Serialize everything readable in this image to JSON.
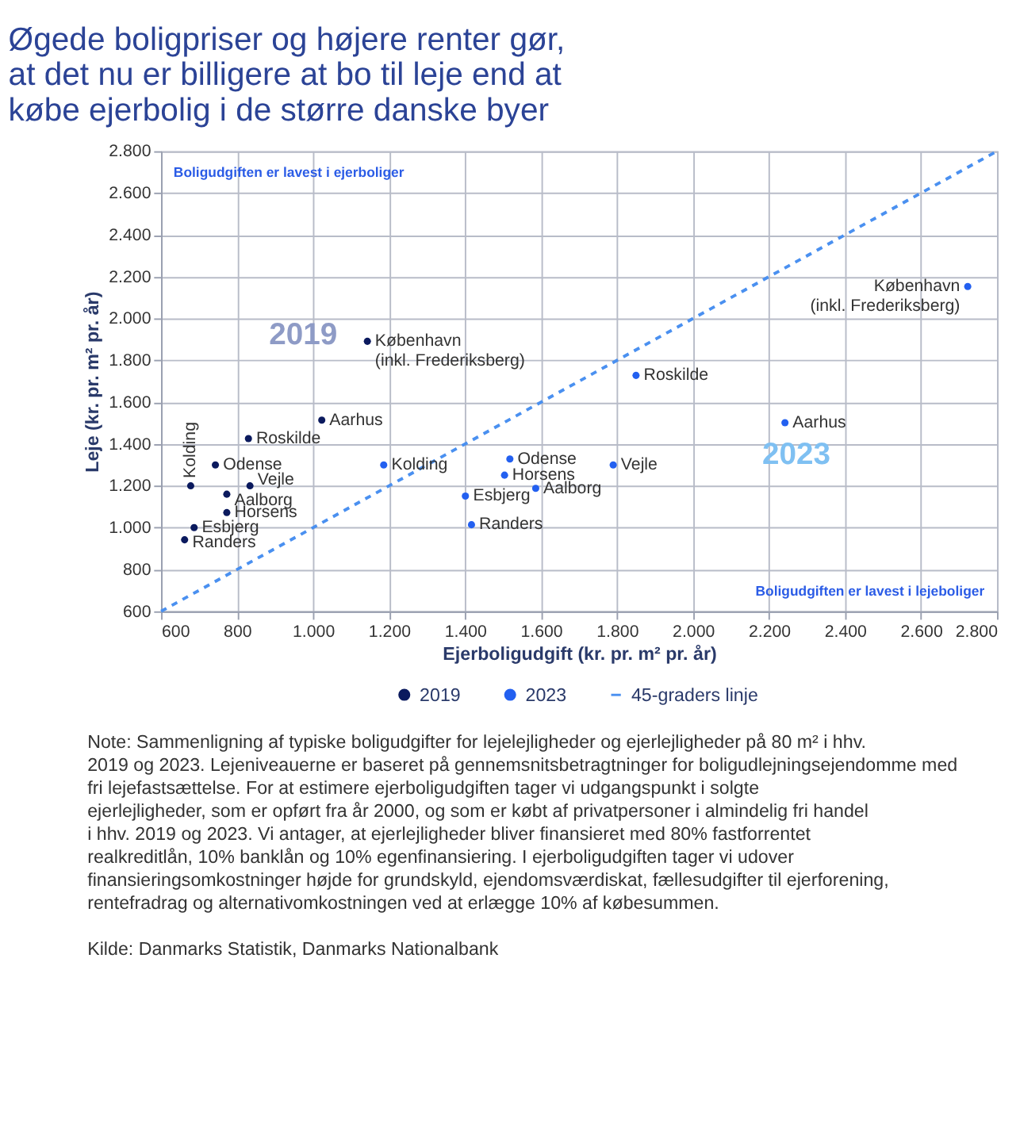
{
  "chart_data": {
    "type": "scatter",
    "title": [
      "Øgede boligpriser og højere renter gør,",
      "at det nu er billigere at bo til leje end at",
      "købe ejerbolig i de større danske byer"
    ],
    "xlabel": "Ejerboligudgift (kr. pr. m² pr. år)",
    "ylabel": "Leje (kr. pr. m² pr. år)",
    "xlim": [
      600,
      2800
    ],
    "ylim": [
      600,
      2800
    ],
    "xticks": [
      600,
      800,
      {
        "value": 1000,
        "label": "1.000"
      },
      {
        "value": 1200,
        "label": "1.200"
      },
      {
        "value": 1400,
        "label": "1.400"
      },
      {
        "value": 1600,
        "label": "1.600"
      },
      {
        "value": 1800,
        "label": "1.800"
      },
      {
        "value": 2000,
        "label": "2.000"
      },
      {
        "value": 2200,
        "label": "2.200"
      },
      {
        "value": 2400,
        "label": "2.400"
      },
      {
        "value": 2600,
        "label": "2.600"
      },
      {
        "value": 2800,
        "label": "2.800"
      }
    ],
    "yticks": [
      600,
      800,
      {
        "value": 1000,
        "label": "1.000"
      },
      {
        "value": 1200,
        "label": "1.200"
      },
      {
        "value": 1400,
        "label": "1.400"
      },
      {
        "value": 1600,
        "label": "1.600"
      },
      {
        "value": 1800,
        "label": "1.800"
      },
      {
        "value": 2000,
        "label": "2.000"
      },
      {
        "value": 2200,
        "label": "2.200"
      },
      {
        "value": 2400,
        "label": "2.400"
      },
      {
        "value": 2600,
        "label": "2.600"
      },
      {
        "value": 2800,
        "label": "2.800"
      }
    ],
    "grid": true,
    "legend": "bottom",
    "marker": "circle",
    "series": [
      {
        "name": "2019",
        "color": "#0b1a5e",
        "x": [
          678,
          743,
          830,
          1023,
          1143,
          834,
          773,
          773,
          687,
          662
        ],
        "values": [
          1200,
          1300,
          1426,
          1514,
          1891,
          1200,
          1160,
          1072,
          1000,
          942
        ]
      },
      {
        "name": "2023",
        "color": "#2360f0",
        "x": [
          1186,
          1518,
          1850,
          2242,
          2723,
          1790,
          1586,
          1504,
          1401,
          1417
        ],
        "values": [
          1300,
          1328,
          1728,
          1502,
          2153,
          1300,
          1188,
          1251,
          1151,
          1014
        ]
      },
      {
        "name": "45-graders linje",
        "color": "#4a90f0",
        "type": "line",
        "marker": "none",
        "line_style": "dashed",
        "x": [
          600,
          2800
        ],
        "values": [
          600,
          2800
        ]
      }
    ],
    "annotations": [
      {
        "text": "Kolding",
        "x": 678,
        "y": 1200
      },
      {
        "text": "Odense",
        "x": 743,
        "y": 1300
      },
      {
        "text": "Roskilde",
        "x": 830,
        "y": 1426
      },
      {
        "text": "Aarhus",
        "x": 1023,
        "y": 1514
      },
      {
        "text": "København\n(inkl. Frederiksberg)",
        "x": 1143,
        "y": 1891
      },
      {
        "text": "Vejle",
        "x": 834,
        "y": 1200
      },
      {
        "text": "Aalborg",
        "x": 773,
        "y": 1160
      },
      {
        "text": "Horsens",
        "x": 773,
        "y": 1072
      },
      {
        "text": "Esbjerg",
        "x": 687,
        "y": 1000
      },
      {
        "text": "Randers",
        "x": 662,
        "y": 942
      },
      {
        "text": "Kolding",
        "x": 1186,
        "y": 1300
      },
      {
        "text": "Odense",
        "x": 1518,
        "y": 1328
      },
      {
        "text": "Roskilde",
        "x": 1850,
        "y": 1728
      },
      {
        "text": "Aarhus",
        "x": 2242,
        "y": 1502
      },
      {
        "text": "København\n(inkl. Frederiksberg)",
        "x": 2723,
        "y": 2153
      },
      {
        "text": "Vejle",
        "x": 1790,
        "y": 1300
      },
      {
        "text": "Aalborg",
        "x": 1586,
        "y": 1188
      },
      {
        "text": "Horsens",
        "x": 1504,
        "y": 1251
      },
      {
        "text": "Esbjerg",
        "x": 1401,
        "y": 1151
      },
      {
        "text": "Randers",
        "x": 1417,
        "y": 1014
      },
      "2019",
      "2023",
      "Boligudgiften er lavest i ejerboliger",
      "Boligudgiften er lavest i lejeboliger",
      "Note: Sammenligning af typiske boligudgifter for lejelejligheder og ejerlejligheder på 80 m² i hhv. 2019 og 2023. Lejeniveauerne er baseret på gennemsnitsbetragtninger for boligudlejningsejendomme med fri lejefastsættelse. For at estimere ejerboligudgiften tager vi udgangspunkt i solgte ejerlejligheder, som er opført fra år 2000, og som er købt af privatpersoner i almindelig fri handel i hhv. 2019 og 2023. Vi antager, at ejerlejligheder bliver finansieret med 80% fastforrentet realkreditlån, 10% banklån og 10% egenfinansiering. I ejerboligudgiften tager vi udover finansieringsomkostninger højde for grundskyld, ejendomsværdiskat, fællesudgifter til ejerforening, rentefradrag og alternativomkostningen ved at erlægge 10% af købesummen.",
      "Kilde: Danmarks Statistik, Danmarks Nationalbank"
    ]
  }
}
